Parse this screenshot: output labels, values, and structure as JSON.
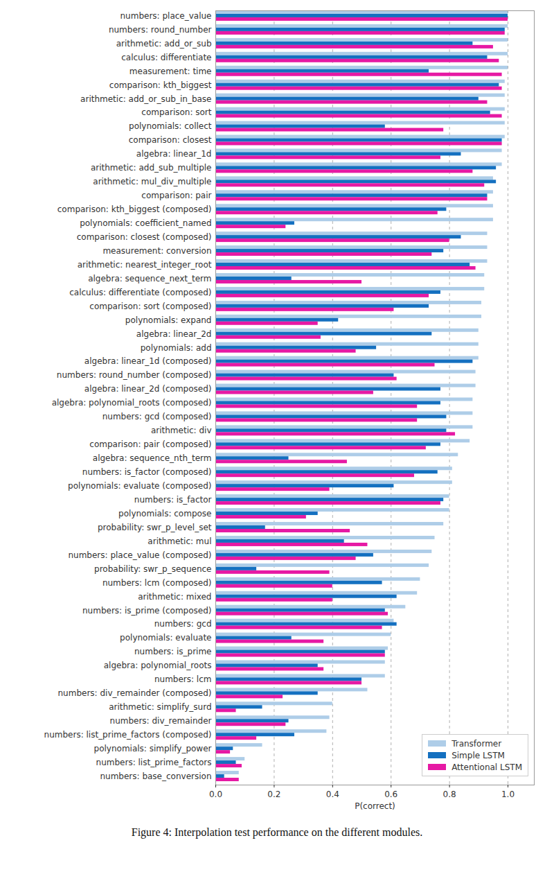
{
  "chart_data": {
    "type": "bar",
    "orientation": "horizontal",
    "caption": "Figure 4: Interpolation test performance on the different modules.",
    "x_label": "P(correct)",
    "xlim": [
      0,
      1.09
    ],
    "xticks": [
      {
        "value": 0,
        "label": "0.0"
      },
      {
        "value": 0.2,
        "label": "0.2"
      },
      {
        "value": 0.4,
        "label": "0.4"
      },
      {
        "value": 0.6,
        "label": "0.6"
      },
      {
        "value": 0.8,
        "label": "0.8"
      },
      {
        "value": 1,
        "label": "1.0"
      }
    ],
    "grid": true,
    "legend": "lower right",
    "categories": [
      "numbers: place_value",
      "numbers: round_number",
      "arithmetic: add_or_sub",
      "calculus: differentiate",
      "measurement: time",
      "comparison: kth_biggest",
      "arithmetic: add_or_sub_in_base",
      "comparison: sort",
      "polynomials: collect",
      "comparison: closest",
      "algebra: linear_1d",
      "arithmetic: add_sub_multiple",
      "arithmetic: mul_div_multiple",
      "comparison: pair",
      "comparison: kth_biggest (composed)",
      "polynomials: coefficient_named",
      "comparison: closest (composed)",
      "measurement: conversion",
      "arithmetic: nearest_integer_root",
      "algebra: sequence_next_term",
      "calculus: differentiate (composed)",
      "comparison: sort (composed)",
      "polynomials: expand",
      "algebra: linear_2d",
      "polynomials: add",
      "algebra: linear_1d (composed)",
      "numbers: round_number (composed)",
      "algebra: linear_2d (composed)",
      "algebra: polynomial_roots (composed)",
      "numbers: gcd (composed)",
      "arithmetic: div",
      "comparison: pair (composed)",
      "algebra: sequence_nth_term",
      "numbers: is_factor (composed)",
      "polynomials: evaluate (composed)",
      "numbers: is_factor",
      "polynomials: compose",
      "probability: swr_p_level_set",
      "arithmetic: mul",
      "numbers: place_value (composed)",
      "probability: swr_p_sequence",
      "numbers: lcm (composed)",
      "arithmetic: mixed",
      "numbers: is_prime (composed)",
      "numbers: gcd",
      "polynomials: evaluate",
      "numbers: is_prime",
      "algebra: polynomial_roots",
      "numbers: lcm",
      "numbers: div_remainder (composed)",
      "arithmetic: simplify_surd",
      "numbers: div_remainder",
      "numbers: list_prime_factors (composed)",
      "polynomials: simplify_power",
      "numbers: list_prime_factors",
      "numbers: base_conversion"
    ],
    "series": [
      {
        "name": "Transformer",
        "color": "#aecde8",
        "values": [
          1.0,
          1.0,
          1.0,
          1.0,
          1.0,
          0.99,
          0.99,
          0.99,
          0.99,
          0.99,
          0.98,
          0.98,
          0.95,
          0.95,
          0.95,
          0.95,
          0.93,
          0.93,
          0.93,
          0.92,
          0.92,
          0.91,
          0.91,
          0.9,
          0.9,
          0.9,
          0.89,
          0.89,
          0.88,
          0.88,
          0.88,
          0.87,
          0.83,
          0.81,
          0.81,
          0.8,
          0.8,
          0.78,
          0.75,
          0.74,
          0.73,
          0.7,
          0.69,
          0.65,
          0.61,
          0.6,
          0.59,
          0.58,
          0.58,
          0.52,
          0.4,
          0.39,
          0.38,
          0.16,
          0.1,
          0.08
        ]
      },
      {
        "name": "Simple LSTM",
        "color": "#1470c0",
        "values": [
          1.0,
          0.99,
          0.88,
          0.93,
          0.73,
          0.97,
          0.9,
          0.94,
          0.58,
          0.98,
          0.84,
          0.96,
          0.96,
          0.93,
          0.79,
          0.27,
          0.84,
          0.78,
          0.87,
          0.26,
          0.77,
          0.73,
          0.42,
          0.74,
          0.55,
          0.88,
          0.61,
          0.77,
          0.77,
          0.79,
          0.79,
          0.77,
          0.25,
          0.76,
          0.61,
          0.78,
          0.35,
          0.17,
          0.44,
          0.54,
          0.14,
          0.57,
          0.62,
          0.58,
          0.62,
          0.26,
          0.58,
          0.35,
          0.5,
          0.35,
          0.16,
          0.25,
          0.27,
          0.06,
          0.07,
          0.03
        ]
      },
      {
        "name": "Attentional LSTM",
        "color": "#e619a4",
        "values": [
          1.0,
          0.99,
          0.95,
          0.97,
          0.98,
          0.98,
          0.93,
          0.98,
          0.78,
          0.98,
          0.77,
          0.88,
          0.92,
          0.93,
          0.76,
          0.24,
          0.8,
          0.74,
          0.89,
          0.5,
          0.73,
          0.61,
          0.35,
          0.36,
          0.48,
          0.75,
          0.62,
          0.54,
          0.69,
          0.69,
          0.82,
          0.72,
          0.45,
          0.68,
          0.39,
          0.77,
          0.31,
          0.46,
          0.52,
          0.48,
          0.39,
          0.4,
          0.4,
          0.59,
          0.57,
          0.37,
          0.58,
          0.37,
          0.5,
          0.23,
          0.07,
          0.24,
          0.14,
          0.05,
          0.09,
          0.08
        ]
      }
    ]
  }
}
